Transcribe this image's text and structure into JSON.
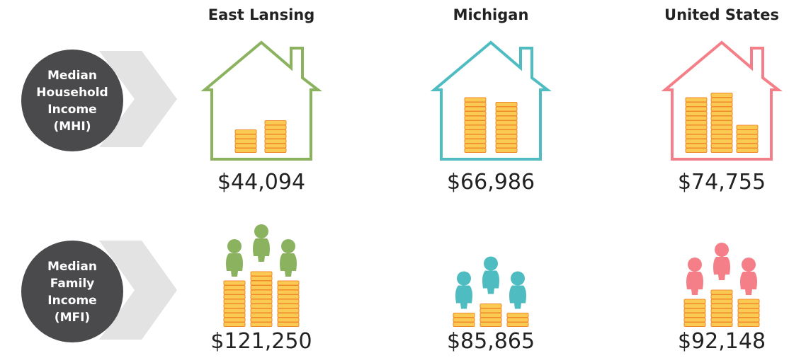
{
  "columns": [
    "East Lansing",
    "Michigan",
    "United States"
  ],
  "rows": [
    {
      "label": [
        "Median",
        "Household",
        "Income",
        "(MHI)"
      ],
      "values": [
        "$44,094",
        "$66,986",
        "$74,755"
      ]
    },
    {
      "label": [
        "Median",
        "Family",
        "Income",
        "(MFI)"
      ],
      "values": [
        "$121,250",
        "$85,865",
        "$92,148"
      ]
    }
  ]
}
